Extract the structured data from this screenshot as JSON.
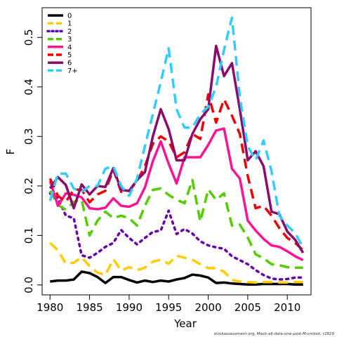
{
  "chart_data": {
    "type": "line",
    "title": "",
    "xlabel": "Year",
    "ylabel": "F",
    "xlim": [
      1979,
      2013
    ],
    "ylim": [
      -0.02,
      0.56
    ],
    "x_ticks": [
      1980,
      1985,
      1990,
      1995,
      2000,
      2005,
      2010
    ],
    "y_ticks": [
      0.0,
      0.1,
      0.2,
      0.3,
      0.4,
      0.5
    ],
    "y_tick_labels": [
      "0.0",
      "0.1",
      "0.2",
      "0.3",
      "0.4",
      "0.5"
    ],
    "grid": false,
    "legend_position": "top-left",
    "credit": "stockassessment.org, Mack-all-data-one-post-M-cmbist, r2829",
    "x": [
      1980,
      1981,
      1982,
      1983,
      1984,
      1985,
      1986,
      1987,
      1988,
      1989,
      1990,
      1991,
      1992,
      1993,
      1994,
      1995,
      1996,
      1997,
      1998,
      1999,
      2000,
      2001,
      2002,
      2003,
      2004,
      2005,
      2006,
      2007,
      2008,
      2009,
      2010,
      2011,
      2012
    ],
    "series": [
      {
        "name": "0",
        "color": "#000000",
        "dash": "solid",
        "values": [
          0.007,
          0.009,
          0.009,
          0.011,
          0.027,
          0.024,
          0.016,
          0.004,
          0.016,
          0.016,
          0.01,
          0.005,
          0.009,
          0.006,
          0.009,
          0.007,
          0.011,
          0.014,
          0.021,
          0.019,
          0.015,
          0.004,
          0.005,
          0.003,
          0.002,
          0.001,
          0.001,
          0.002,
          0.002,
          0.002,
          0.002,
          0.001,
          0.001
        ]
      },
      {
        "name": "1",
        "color": "#FFCC00",
        "dash": "dashed",
        "values": [
          0.085,
          0.07,
          0.043,
          0.045,
          0.056,
          0.038,
          0.025,
          0.02,
          0.052,
          0.029,
          0.036,
          0.03,
          0.035,
          0.047,
          0.051,
          0.043,
          0.059,
          0.055,
          0.051,
          0.042,
          0.034,
          0.034,
          0.027,
          0.01,
          0.007,
          0.006,
          0.005,
          0.006,
          0.006,
          0.005,
          0.005,
          0.006,
          0.006
        ]
      },
      {
        "name": "2",
        "color": "#6600AA",
        "dash": "dotted",
        "values": [
          0.185,
          0.175,
          0.14,
          0.135,
          0.06,
          0.055,
          0.065,
          0.077,
          0.085,
          0.111,
          0.095,
          0.082,
          0.095,
          0.107,
          0.11,
          0.15,
          0.103,
          0.113,
          0.104,
          0.088,
          0.08,
          0.076,
          0.073,
          0.058,
          0.05,
          0.042,
          0.03,
          0.02,
          0.013,
          0.011,
          0.012,
          0.015,
          0.015
        ]
      },
      {
        "name": "3",
        "color": "#55CC00",
        "dash": "dashed",
        "values": [
          0.19,
          0.162,
          0.152,
          0.168,
          0.172,
          0.1,
          0.13,
          0.148,
          0.135,
          0.14,
          0.135,
          0.12,
          0.16,
          0.192,
          0.195,
          0.182,
          0.172,
          0.165,
          0.212,
          0.128,
          0.193,
          0.172,
          0.185,
          0.12,
          0.122,
          0.096,
          0.062,
          0.054,
          0.042,
          0.04,
          0.036,
          0.035,
          0.035
        ]
      },
      {
        "name": "4",
        "color": "#FF1493",
        "dash": "solid",
        "values": [
          0.21,
          0.16,
          0.185,
          0.182,
          0.177,
          0.155,
          0.153,
          0.156,
          0.175,
          0.16,
          0.158,
          0.165,
          0.197,
          0.25,
          0.29,
          0.245,
          0.205,
          0.258,
          0.258,
          0.258,
          0.283,
          0.312,
          0.316,
          0.235,
          0.215,
          0.13,
          0.11,
          0.093,
          0.08,
          0.077,
          0.068,
          0.058,
          0.05
        ]
      },
      {
        "name": "5",
        "color": "#EE0000",
        "dash": "dashed",
        "values": [
          0.215,
          0.18,
          0.168,
          0.193,
          0.192,
          0.167,
          0.183,
          0.19,
          0.233,
          0.188,
          0.19,
          0.21,
          0.24,
          0.285,
          0.3,
          0.29,
          0.258,
          0.268,
          0.305,
          0.295,
          0.385,
          0.328,
          0.375,
          0.342,
          0.305,
          0.22,
          0.155,
          0.16,
          0.14,
          0.115,
          0.095,
          0.085,
          0.07
        ]
      },
      {
        "name": "6",
        "color": "#8B0A6B",
        "dash": "solid",
        "values": [
          0.195,
          0.218,
          0.202,
          0.155,
          0.203,
          0.183,
          0.2,
          0.198,
          0.236,
          0.192,
          0.19,
          0.212,
          0.228,
          0.3,
          0.355,
          0.315,
          0.252,
          0.252,
          0.305,
          0.335,
          0.355,
          0.483,
          0.422,
          0.448,
          0.355,
          0.252,
          0.27,
          0.24,
          0.148,
          0.143,
          0.108,
          0.091,
          0.065
        ]
      },
      {
        "name": "7+",
        "color": "#33CCFF",
        "dash": "dashed",
        "values": [
          0.17,
          0.225,
          0.225,
          0.195,
          0.188,
          0.2,
          0.2,
          0.235,
          0.24,
          0.2,
          0.18,
          0.215,
          0.28,
          0.345,
          0.41,
          0.478,
          0.355,
          0.318,
          0.318,
          0.345,
          0.36,
          0.4,
          0.475,
          0.54,
          0.38,
          0.28,
          0.252,
          0.292,
          0.23,
          0.14,
          0.12,
          0.105,
          0.075
        ]
      }
    ]
  }
}
